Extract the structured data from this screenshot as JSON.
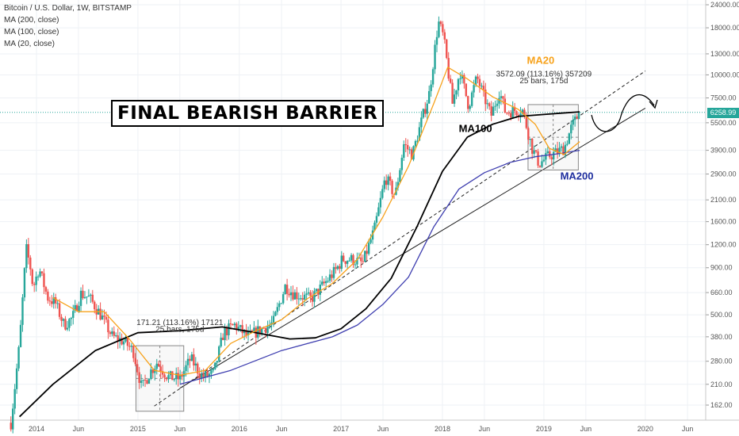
{
  "legend": {
    "symbol": "Bitcoin / U.S. Dollar, 1W, BITSTAMP",
    "ma1": "MA (200, close)",
    "ma2": "MA (100, close)",
    "ma3": "MA (20, close)"
  },
  "headline": "FINAL BEARISH BARRIER",
  "last_price": "6258.99",
  "colors": {
    "up": "#26a69a",
    "down": "#ef5350",
    "ma20": "#f7a21b",
    "ma100": "#000000",
    "ma200": "#3f3fb0",
    "grid": "#eef1f5",
    "last_price_line": "#26a69a"
  },
  "chart_data": {
    "type": "candlestick",
    "y_scale": "log",
    "y_ticks": [
      "24000.00",
      "18000.00",
      "13000.00",
      "10000.00",
      "7500.00",
      "5500.00",
      "3900.00",
      "2900.00",
      "2100.00",
      "1600.00",
      "1200.00",
      "900.00",
      "660.00",
      "500.00",
      "380.00",
      "280.00",
      "210.00",
      "162.00"
    ],
    "x_ticks": [
      "2014",
      "Jun",
      "2015",
      "Jun",
      "2016",
      "Jun",
      "2017",
      "Jun",
      "2018",
      "Jun",
      "2019",
      "Jun",
      "2020",
      "Jun"
    ],
    "price_path": [
      [
        "2013-10-01",
        130
      ],
      [
        "2013-11-01",
        350
      ],
      [
        "2013-11-25",
        1150
      ],
      [
        "2013-12-10",
        900
      ],
      [
        "2013-12-20",
        700
      ],
      [
        "2014-01-10",
        900
      ],
      [
        "2014-02-10",
        620
      ],
      [
        "2014-03-10",
        580
      ],
      [
        "2014-04-10",
        440
      ],
      [
        "2014-05-10",
        480
      ],
      [
        "2014-06-10",
        650
      ],
      [
        "2014-07-10",
        620
      ],
      [
        "2014-08-20",
        500
      ],
      [
        "2014-10-01",
        380
      ],
      [
        "2014-11-10",
        360
      ],
      [
        "2014-12-15",
        320
      ],
      [
        "2015-01-15",
        200
      ],
      [
        "2015-02-10",
        240
      ],
      [
        "2015-03-10",
        275
      ],
      [
        "2015-04-20",
        230
      ],
      [
        "2015-06-01",
        225
      ],
      [
        "2015-07-10",
        290
      ],
      [
        "2015-08-20",
        230
      ],
      [
        "2015-10-01",
        240
      ],
      [
        "2015-11-05",
        400
      ],
      [
        "2015-12-15",
        440
      ],
      [
        "2016-02-01",
        380
      ],
      [
        "2016-03-15",
        415
      ],
      [
        "2016-05-01",
        450
      ],
      [
        "2016-06-15",
        720
      ],
      [
        "2016-07-15",
        650
      ],
      [
        "2016-09-15",
        610
      ],
      [
        "2016-10-20",
        700
      ],
      [
        "2016-12-15",
        880
      ],
      [
        "2017-01-05",
        1000
      ],
      [
        "2017-02-10",
        1000
      ],
      [
        "2017-03-20",
        950
      ],
      [
        "2017-05-01",
        1450
      ],
      [
        "2017-06-10",
        2800
      ],
      [
        "2017-07-15",
        2200
      ],
      [
        "2017-08-15",
        4200
      ],
      [
        "2017-09-15",
        3700
      ],
      [
        "2017-10-20",
        5800
      ],
      [
        "2017-11-15",
        8000
      ],
      [
        "2017-12-17",
        19500
      ],
      [
        "2018-01-05",
        16000
      ],
      [
        "2018-02-06",
        7000
      ],
      [
        "2018-03-05",
        10500
      ],
      [
        "2018-04-05",
        6800
      ],
      [
        "2018-05-05",
        9700
      ],
      [
        "2018-06-25",
        6000
      ],
      [
        "2018-07-25",
        8200
      ],
      [
        "2018-08-15",
        6300
      ],
      [
        "2018-10-15",
        6500
      ],
      [
        "2018-11-20",
        4000
      ],
      [
        "2018-12-15",
        3300
      ],
      [
        "2019-01-15",
        3600
      ],
      [
        "2019-02-15",
        3800
      ],
      [
        "2019-03-15",
        4000
      ],
      [
        "2019-04-10",
        5200
      ],
      [
        "2019-05-10",
        6258.99
      ]
    ],
    "ma20": [
      [
        "2014-03-01",
        620
      ],
      [
        "2014-06-01",
        520
      ],
      [
        "2014-09-01",
        520
      ],
      [
        "2014-12-01",
        370
      ],
      [
        "2015-03-01",
        250
      ],
      [
        "2015-06-01",
        235
      ],
      [
        "2015-09-01",
        250
      ],
      [
        "2015-12-01",
        350
      ],
      [
        "2016-03-01",
        410
      ],
      [
        "2016-06-01",
        470
      ],
      [
        "2016-09-01",
        610
      ],
      [
        "2016-12-01",
        740
      ],
      [
        "2017-03-01",
        1000
      ],
      [
        "2017-06-01",
        1700
      ],
      [
        "2017-09-01",
        3200
      ],
      [
        "2017-12-01",
        7000
      ],
      [
        "2018-01-20",
        11000
      ],
      [
        "2018-04-01",
        9500
      ],
      [
        "2018-07-01",
        7600
      ],
      [
        "2018-10-01",
        6500
      ],
      [
        "2018-12-01",
        5400
      ],
      [
        "2019-01-20",
        4000
      ],
      [
        "2019-03-15",
        3700
      ],
      [
        "2019-05-10",
        4350
      ]
    ],
    "ma100": [
      [
        "2013-11-01",
        140
      ],
      [
        "2014-03-01",
        210
      ],
      [
        "2014-08-01",
        320
      ],
      [
        "2015-01-01",
        400
      ],
      [
        "2015-06-01",
        410
      ],
      [
        "2015-11-01",
        430
      ],
      [
        "2016-03-01",
        400
      ],
      [
        "2016-07-01",
        370
      ],
      [
        "2016-10-01",
        375
      ],
      [
        "2017-01-01",
        420
      ],
      [
        "2017-04-01",
        540
      ],
      [
        "2017-07-01",
        790
      ],
      [
        "2017-10-01",
        1500
      ],
      [
        "2018-01-01",
        3000
      ],
      [
        "2018-04-01",
        4600
      ],
      [
        "2018-07-01",
        5400
      ],
      [
        "2018-10-01",
        5950
      ],
      [
        "2019-01-01",
        6100
      ],
      [
        "2019-03-01",
        6200
      ],
      [
        "2019-05-10",
        6300
      ]
    ],
    "ma200": [
      [
        "2015-06-01",
        210
      ],
      [
        "2015-12-01",
        250
      ],
      [
        "2016-06-01",
        320
      ],
      [
        "2016-12-01",
        380
      ],
      [
        "2017-03-01",
        440
      ],
      [
        "2017-06-01",
        570
      ],
      [
        "2017-09-01",
        800
      ],
      [
        "2017-12-01",
        1500
      ],
      [
        "2018-03-01",
        2400
      ],
      [
        "2018-06-01",
        2950
      ],
      [
        "2018-09-01",
        3350
      ],
      [
        "2018-12-01",
        3600
      ],
      [
        "2019-03-01",
        3750
      ],
      [
        "2019-05-10",
        3900
      ]
    ],
    "trendlines": [
      {
        "style": "solid",
        "from": [
          "2015-06-01",
          200
        ],
        "to": [
          "2020-01-01",
          6600
        ]
      },
      {
        "style": "dashed",
        "from": [
          "2015-03-01",
          160
        ],
        "to": [
          "2020-01-01",
          10500
        ]
      }
    ],
    "annotations": [
      {
        "text": "MA20",
        "color": "#f7a21b",
        "at": [
          "2018-11-01",
          11500
        ]
      },
      {
        "text": "MA100",
        "color": "#000000",
        "at": [
          "2018-03-01",
          4900
        ]
      },
      {
        "text": "MA200",
        "color": "#1f2f9f",
        "at": [
          "2019-03-01",
          2700
        ]
      },
      {
        "text": "171.21 (113.16%) 17121",
        "color": "#333333",
        "at": [
          "2015-06-01",
          440
        ]
      },
      {
        "text": "25 bars, 175d",
        "color": "#333333",
        "at": [
          "2015-06-01",
          405
        ]
      },
      {
        "text": "3572.09 (113.16%) 357209",
        "color": "#333333",
        "at": [
          "2019-01-01",
          9800
        ]
      },
      {
        "text": "25 bars, 175d",
        "color": "#333333",
        "at": [
          "2019-01-01",
          9000
        ]
      }
    ]
  }
}
